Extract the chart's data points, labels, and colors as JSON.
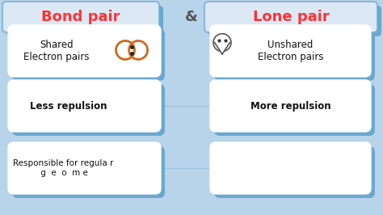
{
  "bg_color": "#b8d4ea",
  "title_bond": "Bond pair",
  "title_lone": "Lone pair",
  "ampersand": "&",
  "title_color": "#ff3333",
  "title_bg": "#dde8f5",
  "title_border": "#7aafd4",
  "box_bg": "#ffffff",
  "box_shadow": "#6aa8d0",
  "left_boxes": [
    "Shared\nElectron pairs",
    "Less repulsion",
    "Responsible for regula r\n g  e  o  m e"
  ],
  "right_boxes": [
    "Unshared\nElectron pairs",
    "More repulsion",
    ""
  ],
  "font_size_title": 13,
  "font_size_box": 8.5,
  "font_size_bottom": 7.5
}
